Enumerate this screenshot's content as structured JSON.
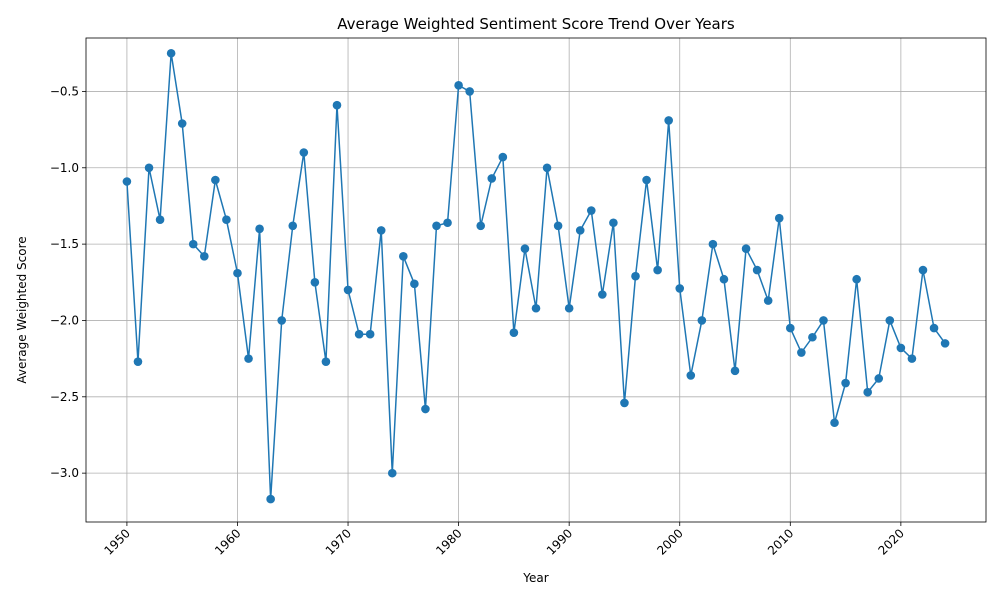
{
  "chart_data": {
    "type": "line",
    "title": "Average Weighted Sentiment Score Trend Over Years",
    "xlabel": "Year",
    "ylabel": "Average Weighted Score",
    "xlim": [
      1946.3,
      2027.7
    ],
    "ylim": [
      -3.32,
      -0.15
    ],
    "xticks": [
      1950,
      1960,
      1970,
      1980,
      1990,
      2000,
      2010,
      2020
    ],
    "xtick_labels": [
      "1950",
      "1960",
      "1970",
      "1980",
      "1990",
      "2000",
      "2010",
      "2020"
    ],
    "yticks": [
      -3.0,
      -2.5,
      -2.0,
      -1.5,
      -1.0,
      -0.5
    ],
    "ytick_labels": [
      "−3.0",
      "−2.5",
      "−2.0",
      "−1.5",
      "−1.0",
      "−0.5"
    ],
    "grid": true,
    "marker": "circle",
    "color": "#1f77b4",
    "x": [
      1950,
      1951,
      1952,
      1953,
      1954,
      1955,
      1956,
      1957,
      1958,
      1959,
      1960,
      1961,
      1962,
      1963,
      1964,
      1965,
      1966,
      1967,
      1968,
      1969,
      1970,
      1971,
      1972,
      1973,
      1974,
      1975,
      1976,
      1977,
      1978,
      1979,
      1980,
      1981,
      1982,
      1983,
      1984,
      1985,
      1986,
      1987,
      1988,
      1989,
      1990,
      1991,
      1992,
      1993,
      1994,
      1995,
      1996,
      1997,
      1998,
      1999,
      2000,
      2001,
      2002,
      2003,
      2004,
      2005,
      2006,
      2007,
      2008,
      2009,
      2010,
      2011,
      2012,
      2013,
      2014,
      2015,
      2016,
      2017,
      2018,
      2019,
      2020,
      2021,
      2022,
      2023,
      2024
    ],
    "y": [
      -1.09,
      -2.27,
      -1.0,
      -1.34,
      -0.25,
      -0.71,
      -1.5,
      -1.58,
      -1.08,
      -1.34,
      -1.69,
      -2.25,
      -1.4,
      -3.17,
      -2.0,
      -1.38,
      -0.9,
      -1.75,
      -2.27,
      -0.59,
      -1.8,
      -2.09,
      -2.09,
      -1.41,
      -3.0,
      -1.58,
      -1.76,
      -2.58,
      -1.38,
      -1.36,
      -0.46,
      -0.5,
      -1.38,
      -1.07,
      -0.93,
      -2.08,
      -1.53,
      -1.92,
      -1.0,
      -1.38,
      -1.92,
      -1.41,
      -1.28,
      -1.83,
      -1.36,
      -2.54,
      -1.71,
      -1.08,
      -1.67,
      -0.69,
      -1.79,
      -2.36,
      -2.0,
      -1.5,
      -1.73,
      -2.33,
      -1.53,
      -1.67,
      -1.87,
      -1.33,
      -2.05,
      -2.21,
      -2.11,
      -2.0,
      -2.67,
      -2.41,
      -1.73,
      -2.47,
      -2.38,
      -2.0,
      -2.18,
      -2.25,
      -1.67,
      -2.05,
      -2.15
    ]
  }
}
